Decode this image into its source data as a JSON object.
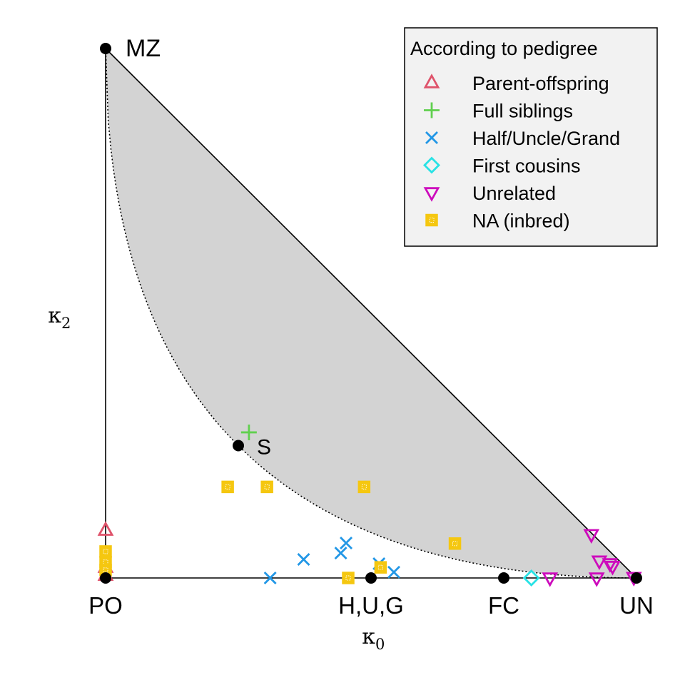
{
  "chart_data": {
    "type": "scatter",
    "xlabel": "κ",
    "xlabel_sub": "0",
    "ylabel": "κ",
    "ylabel_sub": "2",
    "xlim": [
      0,
      1
    ],
    "ylim": [
      0,
      1
    ],
    "reference_points": [
      {
        "label": "MZ",
        "x": 0,
        "y": 1
      },
      {
        "label": "S",
        "x": 0.25,
        "y": 0.25
      },
      {
        "label": "H,U,G",
        "x": 0.5,
        "y": 0
      },
      {
        "label": "FC",
        "x": 0.75,
        "y": 0
      },
      {
        "label": "PO",
        "x": 0,
        "y": 0
      },
      {
        "label": "UN",
        "x": 1,
        "y": 0
      }
    ],
    "legend": {
      "title": "According to pedigree",
      "position": "top-right",
      "entries": [
        {
          "key": "po",
          "label": "Parent-offspring",
          "color": "#DF536B",
          "marker": "triangle-up"
        },
        {
          "key": "fs",
          "label": "Full siblings",
          "color": "#61D04F",
          "marker": "plus"
        },
        {
          "key": "hug",
          "label": "Half/Uncle/Grand",
          "color": "#2297E6",
          "marker": "cross"
        },
        {
          "key": "fc",
          "label": "First cousins",
          "color": "#28E2E5",
          "marker": "diamond"
        },
        {
          "key": "un",
          "label": "Unrelated",
          "color": "#CD0BBC",
          "marker": "triangle-down"
        },
        {
          "key": "na",
          "label": "NA (inbred)",
          "color": "#F5C710",
          "marker": "square"
        }
      ]
    },
    "series": [
      {
        "key": "po",
        "points": [
          [
            0,
            0.09
          ],
          [
            0,
            0.02
          ],
          [
            0,
            0.005
          ]
        ]
      },
      {
        "key": "fs",
        "points": [
          [
            0.27,
            0.275
          ]
        ]
      },
      {
        "key": "hug",
        "points": [
          [
            0.31,
            0
          ],
          [
            0.373,
            0.035
          ],
          [
            0.443,
            0.047
          ],
          [
            0.453,
            0.066
          ],
          [
            0.515,
            0.027
          ],
          [
            0.543,
            0.011
          ]
        ]
      },
      {
        "key": "fc",
        "points": [
          [
            0.802,
            0
          ]
        ]
      },
      {
        "key": "un",
        "points": [
          [
            0.837,
            0
          ],
          [
            0.915,
            0.082
          ],
          [
            0.93,
            0.032
          ],
          [
            0.95,
            0.027
          ],
          [
            0.955,
            0.022
          ],
          [
            0.925,
            0
          ],
          [
            0.995,
            0.001
          ]
        ]
      },
      {
        "key": "na",
        "points": [
          [
            0,
            0.05
          ],
          [
            0,
            0.03
          ],
          [
            0,
            0.015
          ],
          [
            0.23,
            0.172
          ],
          [
            0.304,
            0.172
          ],
          [
            0.487,
            0.172
          ],
          [
            0.457,
            0.0
          ],
          [
            0.518,
            0.02
          ],
          [
            0.658,
            0.065
          ]
        ]
      }
    ]
  }
}
